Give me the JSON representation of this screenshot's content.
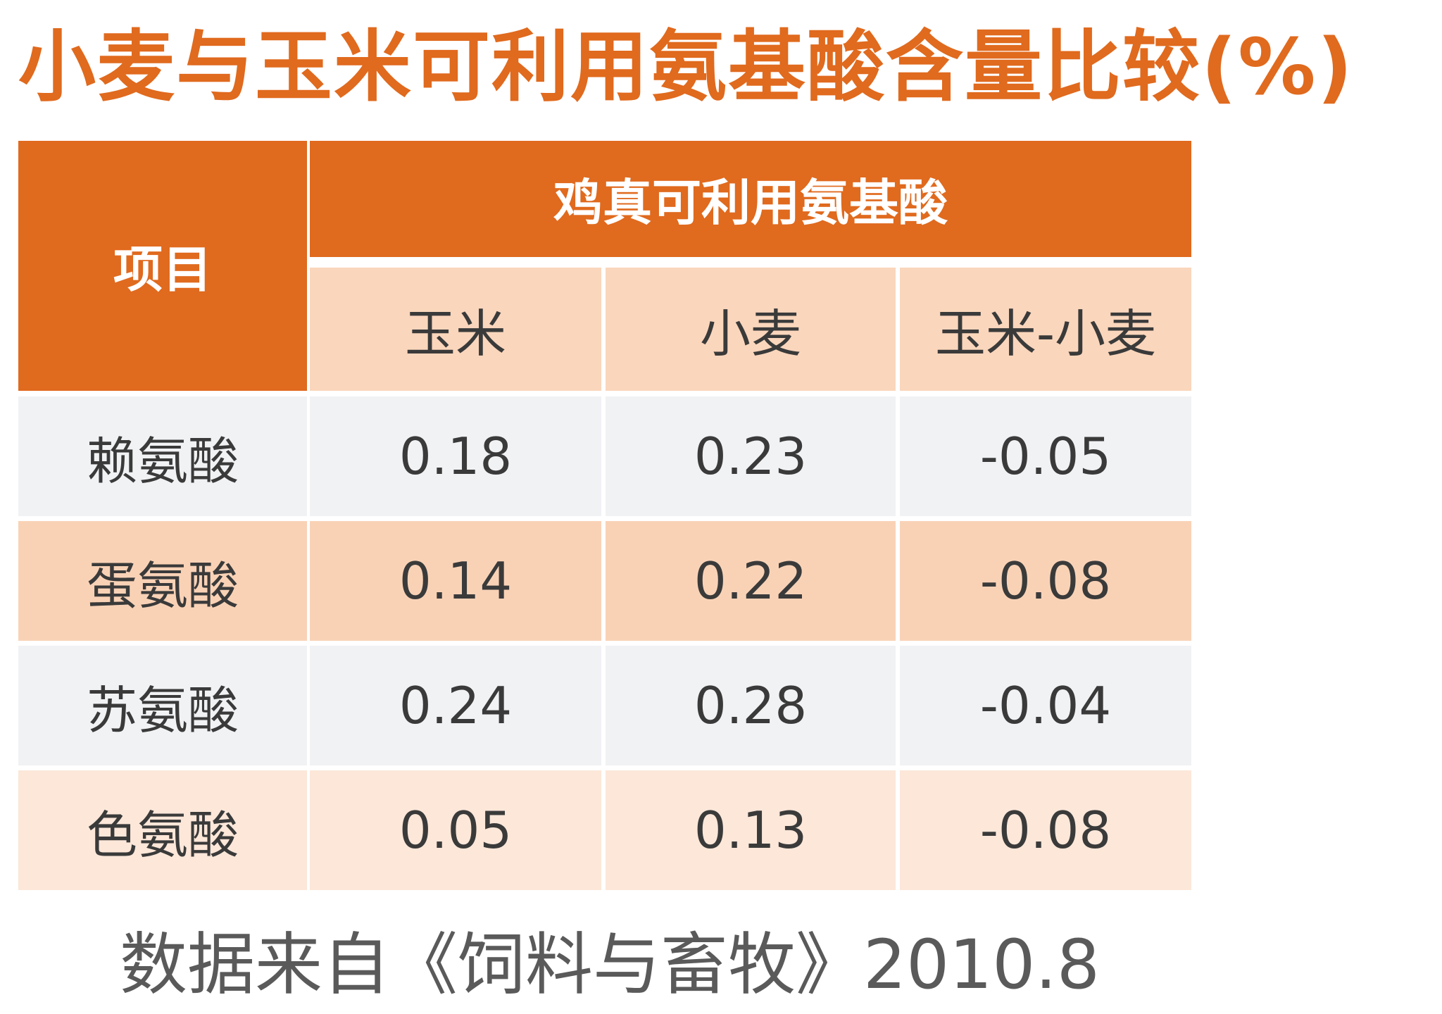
{
  "title": "小麦与玉米可利用氨基酸含量比较(%)",
  "source": "数据来自《饲料与畜牧》2010.8",
  "colors": {
    "header_orange": "#e06a1e",
    "subheader_peach": "#fad6bc",
    "row_gray": "#f1f2f4",
    "row_orange": "#f9d2b6",
    "row_light": "#fce7d9"
  },
  "chart_data": {
    "type": "table",
    "title": "小麦与玉米可利用氨基酸含量比较(%)",
    "row_header": "项目",
    "group_header": "鸡真可利用氨基酸",
    "columns": [
      "玉米",
      "小麦",
      "玉米-小麦"
    ],
    "rows": [
      {
        "label": "赖氨酸",
        "values": [
          "0.18",
          "0.23",
          "-0.05"
        ]
      },
      {
        "label": "蛋氨酸",
        "values": [
          "0.14",
          "0.22",
          "-0.08"
        ]
      },
      {
        "label": "苏氨酸",
        "values": [
          "0.24",
          "0.28",
          "-0.04"
        ]
      },
      {
        "label": "色氨酸",
        "values": [
          "0.05",
          "0.13",
          "-0.08"
        ]
      }
    ],
    "source": "数据来自《饲料与畜牧》2010.8"
  }
}
